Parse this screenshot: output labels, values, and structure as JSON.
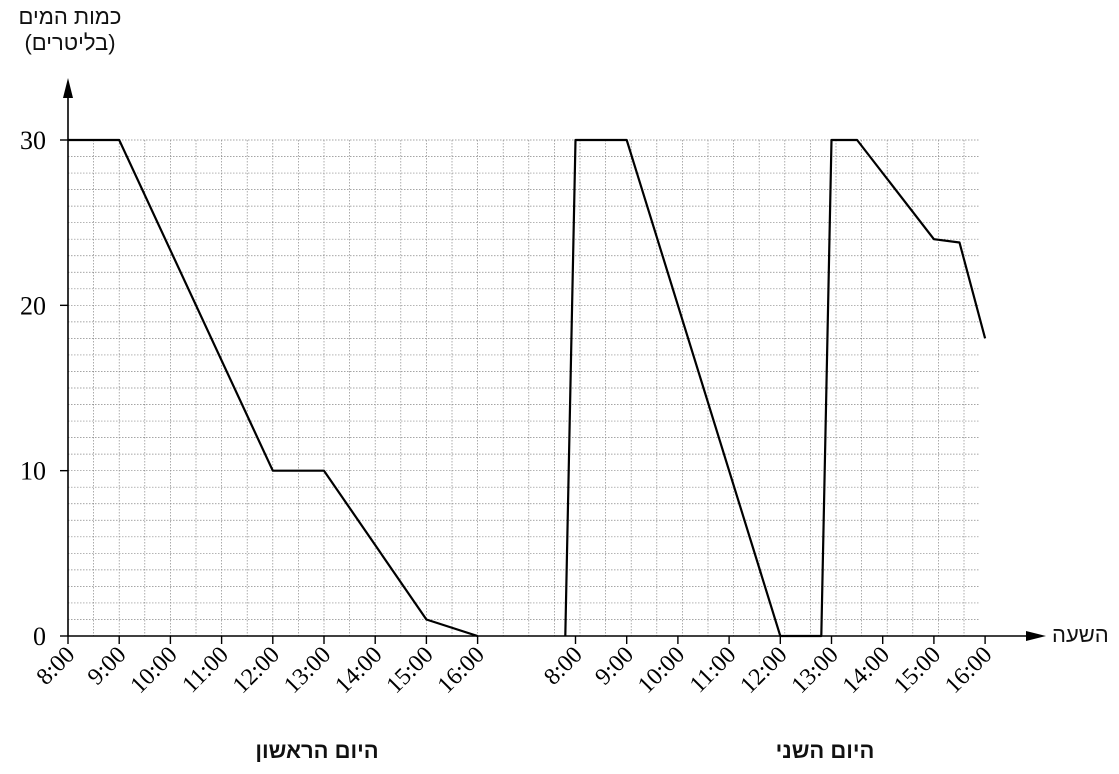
{
  "chart_data": {
    "type": "line",
    "ylabel_line1": "כמות המים",
    "ylabel_line2": "(בליטרים)",
    "xlabel": "השעה",
    "ylim": [
      0,
      30
    ],
    "yticks": [
      0,
      10,
      20,
      30
    ],
    "grid": true,
    "days": [
      {
        "name": "היום הראשון",
        "tick_labels": [
          "8:00",
          "9:00",
          "10:00",
          "11:00",
          "12:00",
          "13:00",
          "14:00",
          "15:00",
          "16:00"
        ],
        "points": [
          {
            "x": "8:00",
            "y": 30
          },
          {
            "x": "9:00",
            "y": 30
          },
          {
            "x": "12:00",
            "y": 10
          },
          {
            "x": "13:00",
            "y": 10
          },
          {
            "x": "15:00",
            "y": 1
          },
          {
            "x": "16:00",
            "y": 0
          }
        ]
      },
      {
        "name": "היום השני",
        "tick_labels": [
          "8:00",
          "9:00",
          "10:00",
          "11:00",
          "12:00",
          "13:00",
          "14:00",
          "15:00",
          "16:00"
        ],
        "points": [
          {
            "x": "7:48",
            "y": 0
          },
          {
            "x": "8:00",
            "y": 30
          },
          {
            "x": "9:00",
            "y": 30
          },
          {
            "x": "12:00",
            "y": 0
          },
          {
            "x": "12:48",
            "y": 0
          },
          {
            "x": "13:00",
            "y": 30
          },
          {
            "x": "13:30",
            "y": 30
          },
          {
            "x": "15:00",
            "y": 24
          },
          {
            "x": "15:30",
            "y": 23.8
          },
          {
            "x": "16:00",
            "y": 18
          }
        ]
      }
    ]
  }
}
